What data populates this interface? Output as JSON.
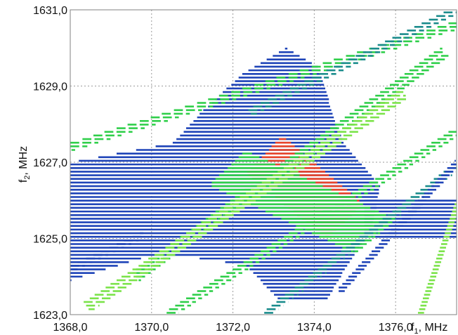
{
  "chart_data": {
    "type": "heatmap",
    "title": "",
    "xlabel": "f",
    "xlabel_sub": "1",
    "xlabel_unit": ", MHz",
    "ylabel": "f",
    "ylabel_sub": "2",
    "ylabel_unit": ", MHz",
    "xlim": [
      1368.0,
      1377.5
    ],
    "ylim": [
      1623.0,
      1631.0
    ],
    "x_ticks": [
      1368.0,
      1370.0,
      1372.0,
      1374.0,
      1376.0
    ],
    "x_tick_labels": [
      "1368,0",
      "1370,0",
      "1372,0",
      "1374,0",
      "1376,0"
    ],
    "y_ticks": [
      1623.0,
      1625.0,
      1627.0,
      1629.0,
      1631.0
    ],
    "y_tick_labels": [
      "1623,0",
      "1625,0",
      "1627,0",
      "1629,0",
      "1631,0"
    ],
    "grid": true,
    "grid_style": "dotted",
    "row_step": 0.095,
    "dash_length": 0.22,
    "colors": {
      "low": "#1f44b8",
      "mid_low": "#1a8c8c",
      "mid": "#2fcf4a",
      "high": "#7be34a",
      "peak": "#e8452b",
      "grid": "#9a9a9a",
      "frame": "#808080"
    },
    "regions": [
      {
        "name": "central blue block",
        "level": "low",
        "type": "poly",
        "pts": [
          [
            1368.0,
            1623.9
          ],
          [
            1368.0,
            1627.0
          ],
          [
            1370.5,
            1627.5
          ],
          [
            1371.2,
            1628.3
          ],
          [
            1372.2,
            1629.3
          ],
          [
            1373.3,
            1630.0
          ],
          [
            1374.1,
            1629.5
          ],
          [
            1374.4,
            1628.4
          ],
          [
            1374.7,
            1627.5
          ],
          [
            1375.6,
            1626.4
          ],
          [
            1375.4,
            1625.2
          ],
          [
            1374.8,
            1624.3
          ],
          [
            1374.3,
            1623.4
          ],
          [
            1373.1,
            1623.4
          ],
          [
            1372.3,
            1624.3
          ],
          [
            1371.0,
            1624.5
          ],
          [
            1369.8,
            1624.5
          ]
        ]
      },
      {
        "name": "right blue block",
        "level": "low",
        "type": "rect",
        "x0": 1375.2,
        "x1": 1377.5,
        "y0": 1625.0,
        "y1": 1626.0
      },
      {
        "name": "peak region",
        "level": "peak",
        "type": "poly",
        "pts": [
          [
            1372.3,
            1626.7
          ],
          [
            1373.2,
            1627.7
          ],
          [
            1375.2,
            1625.9
          ],
          [
            1374.3,
            1625.0
          ]
        ]
      },
      {
        "name": "gradient band",
        "level": "mid",
        "type": "poly",
        "pts": [
          [
            1371.4,
            1626.4
          ],
          [
            1372.3,
            1627.3
          ],
          [
            1376.0,
            1625.5
          ],
          [
            1375.0,
            1624.6
          ]
        ]
      },
      {
        "name": "diagonal band 1",
        "level": "mid",
        "type": "band",
        "from": [
          1368.0,
          1627.4
        ],
        "to": [
          1377.5,
          1630.6
        ],
        "width": 0.22
      },
      {
        "name": "diagonal band 2",
        "level": "mid",
        "type": "band",
        "from": [
          1369.6,
          1624.0
        ],
        "to": [
          1377.2,
          1629.9
        ],
        "width": 0.3
      },
      {
        "name": "diagonal band 3",
        "level": "high",
        "type": "band",
        "from": [
          1368.4,
          1623.2
        ],
        "to": [
          1376.2,
          1628.8
        ],
        "width": 0.3
      },
      {
        "name": "diagonal band 4",
        "level": "mid",
        "type": "band",
        "from": [
          1370.4,
          1623.0
        ],
        "to": [
          1377.5,
          1627.8
        ],
        "width": 0.22
      },
      {
        "name": "diagonal band 5",
        "level": "mid_low",
        "type": "band",
        "from": [
          1372.8,
          1623.0
        ],
        "to": [
          1377.5,
          1626.9
        ],
        "width": 0.2
      },
      {
        "name": "diagonal band 6",
        "level": "low",
        "type": "band",
        "from": [
          1374.6,
          1623.6
        ],
        "to": [
          1377.5,
          1627.0
        ],
        "width": 0.16
      },
      {
        "name": "upper band",
        "level": "mid_low",
        "type": "band",
        "from": [
          1372.4,
          1628.3
        ],
        "to": [
          1377.5,
          1631.0
        ],
        "width": 0.2
      },
      {
        "name": "right edge band",
        "level": "high",
        "type": "band",
        "from": [
          1376.6,
          1623.0
        ],
        "to": [
          1377.5,
          1625.9
        ],
        "width": 0.14
      },
      {
        "name": "left lower band",
        "level": "low",
        "type": "band",
        "from": [
          1368.0,
          1624.2
        ],
        "to": [
          1369.8,
          1625.1
        ],
        "width": 0.16
      }
    ]
  }
}
